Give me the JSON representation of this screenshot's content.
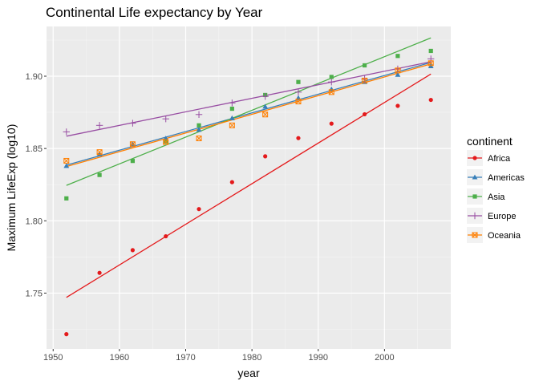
{
  "chart_data": {
    "type": "scatter",
    "title": "Continental Life expectancy by Year",
    "xlabel": "year",
    "ylabel": "Maximum LifeExp (log10)",
    "xlim": [
      1949,
      2010
    ],
    "ylim": [
      1.7114,
      1.9344
    ],
    "x_ticks": [
      1950,
      1960,
      1970,
      1980,
      1990,
      2000
    ],
    "y_ticks": [
      1.75,
      1.8,
      1.85,
      1.9
    ],
    "y_tick_labels": [
      "1.75",
      "1.80",
      "1.85",
      "1.90"
    ],
    "grid": true,
    "background": "#ebebeb",
    "legend": {
      "title": "continent",
      "position": "right"
    },
    "x": [
      1952,
      1957,
      1962,
      1967,
      1972,
      1977,
      1982,
      1987,
      1992,
      1997,
      2002,
      2007
    ],
    "series": [
      {
        "name": "Africa",
        "color": "#e41a1c",
        "marker": "circle",
        "values": [
          1.7216,
          1.764,
          1.7797,
          1.7893,
          1.8081,
          1.8267,
          1.8446,
          1.8572,
          1.8672,
          1.8737,
          1.8795,
          1.8836
        ],
        "fit": [
          1.747,
          1.9015
        ]
      },
      {
        "name": "Americas",
        "color": "#377eb8",
        "marker": "triangle",
        "values": [
          1.838,
          1.846,
          1.853,
          1.857,
          1.863,
          1.871,
          1.879,
          1.885,
          1.891,
          1.896,
          1.901,
          1.907
        ],
        "fit": [
          1.8385,
          1.9095
        ]
      },
      {
        "name": "Asia",
        "color": "#4daf4a",
        "marker": "square",
        "values": [
          1.8155,
          1.8317,
          1.8414,
          1.8548,
          1.866,
          1.8775,
          1.887,
          1.896,
          1.8995,
          1.9075,
          1.914,
          1.9175
        ],
        "fit": [
          1.8245,
          1.9265
        ]
      },
      {
        "name": "Europe",
        "color": "#984ea3",
        "marker": "plus",
        "values": [
          1.8615,
          1.866,
          1.8675,
          1.8705,
          1.8735,
          1.8815,
          1.886,
          1.889,
          1.896,
          1.898,
          1.905,
          1.912
        ],
        "fit": [
          1.8585,
          1.91
        ]
      },
      {
        "name": "Oceania",
        "color": "#ff7f00",
        "marker": "square-x",
        "values": [
          1.8415,
          1.8475,
          1.853,
          1.8545,
          1.857,
          1.866,
          1.8735,
          1.8825,
          1.889,
          1.897,
          1.904,
          1.909
        ],
        "fit": [
          1.8375,
          1.9085
        ]
      }
    ]
  }
}
